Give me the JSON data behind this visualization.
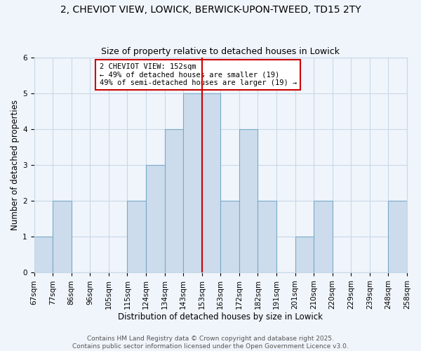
{
  "title_line1": "2, CHEVIOT VIEW, LOWICK, BERWICK-UPON-TWEED, TD15 2TY",
  "title_line2": "Size of property relative to detached houses in Lowick",
  "xlabel": "Distribution of detached houses by size in Lowick",
  "ylabel": "Number of detached properties",
  "bin_labels": [
    "67sqm",
    "77sqm",
    "86sqm",
    "96sqm",
    "105sqm",
    "115sqm",
    "124sqm",
    "134sqm",
    "143sqm",
    "153sqm",
    "163sqm",
    "172sqm",
    "182sqm",
    "191sqm",
    "201sqm",
    "210sqm",
    "220sqm",
    "229sqm",
    "239sqm",
    "248sqm",
    "258sqm"
  ],
  "bar_heights": [
    1,
    2,
    0,
    0,
    0,
    2,
    3,
    4,
    5,
    5,
    2,
    4,
    2,
    0,
    1,
    2,
    0,
    0,
    0,
    2
  ],
  "bar_color": "#ccdcec",
  "bar_edge_color": "#7aaac8",
  "grid_color": "#c8d8e8",
  "ref_line_x": 8.5,
  "ref_line_color": "#cc0000",
  "annotation_title": "2 CHEVIOT VIEW: 152sqm",
  "annotation_line1": "← 49% of detached houses are smaller (19)",
  "annotation_line2": "49% of semi-detached houses are larger (19) →",
  "annotation_box_edge": "#cc0000",
  "ylim": [
    0,
    6
  ],
  "yticks": [
    0,
    1,
    2,
    3,
    4,
    5,
    6
  ],
  "footer1": "Contains HM Land Registry data © Crown copyright and database right 2025.",
  "footer2": "Contains public sector information licensed under the Open Government Licence v3.0.",
  "background_color": "#f0f5fb",
  "title_fontsize": 10,
  "subtitle_fontsize": 9,
  "axis_label_fontsize": 8.5,
  "tick_fontsize": 7.5,
  "footer_fontsize": 6.5,
  "annotation_fontsize": 7.5
}
